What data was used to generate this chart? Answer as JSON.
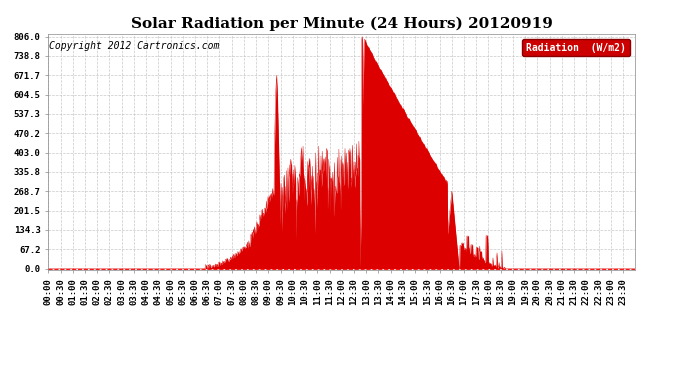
{
  "title": "Solar Radiation per Minute (24 Hours) 20120919",
  "copyright": "Copyright 2012 Cartronics.com",
  "legend_label": "Radiation  (W/m2)",
  "ylabel_ticks": [
    0.0,
    67.2,
    134.3,
    201.5,
    268.7,
    335.8,
    403.0,
    470.2,
    537.3,
    604.5,
    671.7,
    738.8,
    806.0
  ],
  "ymax": 806.0,
  "ymin": 0.0,
  "fill_color": "#dd0000",
  "line_color": "#dd0000",
  "background_color": "#ffffff",
  "grid_color": "#bbbbbb",
  "title_fontsize": 11,
  "copyright_fontsize": 7,
  "tick_fontsize": 6.5,
  "legend_bg": "#cc0000",
  "legend_text_color": "#ffffff",
  "total_minutes": 1440,
  "sunrise": 385,
  "sunset": 1121,
  "peak_minute": 770,
  "peak_value": 806.0,
  "spike1_minute": 560,
  "spike1_value": 671.7,
  "late_bump_minute": 990,
  "late_bump_value": 268.7
}
